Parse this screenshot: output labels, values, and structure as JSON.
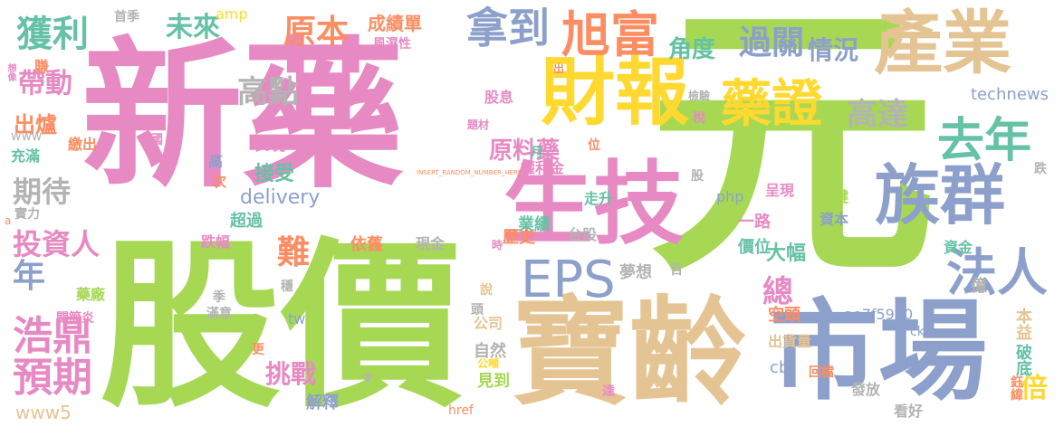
{
  "palette": {
    "pink": "#e78ac3",
    "green": "#a6d854",
    "tan": "#e5c494",
    "blue": "#8da0cb",
    "yellow": "#ffd92f",
    "orange": "#fc8d62",
    "teal": "#66c2a5",
    "gray": "#b3b3b3"
  },
  "words": [
    {
      "id": "w1",
      "text": "新藥",
      "color": "pink"
    },
    {
      "id": "w2",
      "text": "元",
      "color": "green"
    },
    {
      "id": "w3",
      "text": "股價",
      "color": "green"
    },
    {
      "id": "w4",
      "text": "寶齡",
      "color": "tan"
    },
    {
      "id": "w5",
      "text": "市場",
      "color": "blue"
    },
    {
      "id": "w6",
      "text": "生技",
      "color": "pink"
    },
    {
      "id": "w7",
      "text": "財報",
      "color": "yellow"
    },
    {
      "id": "w8",
      "text": "產業",
      "color": "tan"
    },
    {
      "id": "w9",
      "text": "族群",
      "color": "blue"
    },
    {
      "id": "w10",
      "text": "旭富",
      "color": "orange"
    },
    {
      "id": "w11",
      "text": "EPS",
      "color": "blue"
    },
    {
      "id": "w12",
      "text": "藥證",
      "color": "yellow"
    },
    {
      "id": "w13",
      "text": "法人",
      "color": "blue"
    },
    {
      "id": "w14",
      "text": "拿到",
      "color": "blue"
    },
    {
      "id": "w15",
      "text": "去年",
      "color": "teal"
    },
    {
      "id": "w16",
      "text": "浩鼎",
      "color": "pink"
    },
    {
      "id": "w17",
      "text": "預期",
      "color": "pink"
    },
    {
      "id": "w18",
      "text": "獲利",
      "color": "teal"
    },
    {
      "id": "w19",
      "text": "原本",
      "color": "orange"
    },
    {
      "id": "w20",
      "text": "未來",
      "color": "teal"
    },
    {
      "id": "w21",
      "text": "過關",
      "color": "blue"
    },
    {
      "id": "w22",
      "text": "高達",
      "color": "gray"
    },
    {
      "id": "w23",
      "text": "情況",
      "color": "blue"
    },
    {
      "id": "w24",
      "text": "角度",
      "color": "teal"
    },
    {
      "id": "w25",
      "text": "高點",
      "color": "gray"
    },
    {
      "id": "w26",
      "text": "帶動",
      "color": "pink"
    },
    {
      "id": "w27",
      "text": "期待",
      "color": "gray"
    },
    {
      "id": "w28",
      "text": "投資人",
      "color": "pink"
    },
    {
      "id": "w29",
      "text": "年",
      "color": "blue"
    },
    {
      "id": "w30",
      "text": "原料藥",
      "color": "pink"
    },
    {
      "id": "w31",
      "text": "難",
      "color": "orange"
    },
    {
      "id": "w32",
      "text": "總",
      "color": "pink"
    },
    {
      "id": "w33",
      "text": "挑戰",
      "color": "pink"
    },
    {
      "id": "w34",
      "text": "接受",
      "color": "teal"
    },
    {
      "id": "w35",
      "text": "大幅",
      "color": "teal"
    },
    {
      "id": "w36",
      "text": "成績單",
      "color": "orange"
    },
    {
      "id": "w37",
      "text": "出爐",
      "color": "orange"
    },
    {
      "id": "w38",
      "text": "www5",
      "color": "tan"
    },
    {
      "id": "w39",
      "text": "delivery",
      "color": "blue"
    },
    {
      "id": "w40",
      "text": "technews",
      "color": "blue"
    },
    {
      "id": "w41",
      "text": "ae7f5990",
      "color": "blue"
    },
    {
      "id": "w42",
      "text": "倍",
      "color": "yellow"
    },
    {
      "id": "w43",
      "text": "cb",
      "color": "blue"
    },
    {
      "id": "w44",
      "text": "amp",
      "color": "yellow"
    },
    {
      "id": "w45",
      "text": "股息",
      "color": "pink"
    },
    {
      "id": "w46",
      "text": "表現",
      "color": "pink"
    },
    {
      "id": "w47",
      "text": "業績",
      "color": "teal"
    },
    {
      "id": "w48",
      "text": "權利金",
      "color": "pink"
    },
    {
      "id": "w49",
      "text": "歷史",
      "color": "orange"
    },
    {
      "id": "w50",
      "text": "台股",
      "color": "gray"
    },
    {
      "id": "w51",
      "text": "一路",
      "color": "pink"
    },
    {
      "id": "w52",
      "text": "價位",
      "color": "teal"
    },
    {
      "id": "w53",
      "text": "呈現",
      "color": "pink"
    },
    {
      "id": "w54",
      "text": "資本",
      "color": "blue"
    },
    {
      "id": "w55",
      "text": "關鍵",
      "color": "green"
    },
    {
      "id": "w56",
      "text": "夢想",
      "color": "gray"
    },
    {
      "id": "w57",
      "text": "空頭",
      "color": "orange"
    },
    {
      "id": "w58",
      "text": "資金",
      "color": "teal"
    },
    {
      "id": "w59",
      "text": "億",
      "color": "gray"
    },
    {
      "id": "w60",
      "text": "本益",
      "color": "tan"
    },
    {
      "id": "w61",
      "text": "破底",
      "color": "teal"
    },
    {
      "id": "w62",
      "text": "出貨量",
      "color": "tan"
    },
    {
      "id": "w63",
      "text": "鈺緯",
      "color": "orange"
    },
    {
      "id": "w64",
      "text": "發放",
      "color": "gray"
    },
    {
      "id": "w65",
      "text": "看好",
      "color": "gray"
    },
    {
      "id": "w66",
      "text": "自然",
      "color": "gray"
    },
    {
      "id": "w67",
      "text": "公司",
      "color": "tan"
    },
    {
      "id": "w68",
      "text": "見到",
      "color": "green"
    },
    {
      "id": "w69",
      "text": "解釋",
      "color": "blue"
    },
    {
      "id": "w70",
      "text": "超過",
      "color": "teal"
    },
    {
      "id": "w71",
      "text": "跌幅",
      "color": "pink"
    },
    {
      "id": "w72",
      "text": "依舊",
      "color": "orange"
    },
    {
      "id": "w73",
      "text": "現金",
      "color": "gray"
    },
    {
      "id": "w74",
      "text": "走升",
      "color": "teal"
    },
    {
      "id": "w75",
      "text": "實力",
      "color": "gray"
    },
    {
      "id": "w76",
      "text": "充滿",
      "color": "teal"
    },
    {
      "id": "w77",
      "text": "繳出",
      "color": "orange"
    },
    {
      "id": "w78",
      "text": "www",
      "color": "gray"
    },
    {
      "id": "w79",
      "text": "中國",
      "color": "pink"
    },
    {
      "id": "w80",
      "text": "賺",
      "color": "orange"
    },
    {
      "id": "w81",
      "text": "首季",
      "color": "gray"
    },
    {
      "id": "w82",
      "text": "風濕性",
      "color": "pink"
    },
    {
      "id": "w83",
      "text": "關節炎",
      "color": "pink"
    },
    {
      "id": "w84",
      "text": "藥廠",
      "color": "green"
    },
    {
      "id": "w85",
      "text": "滿意",
      "color": "gray"
    },
    {
      "id": "w86",
      "text": "季",
      "color": "gray"
    },
    {
      "id": "w87",
      "text": "穩",
      "color": "gray"
    },
    {
      "id": "w88",
      "text": "tw",
      "color": "blue"
    },
    {
      "id": "w89",
      "text": "php",
      "color": "blue"
    },
    {
      "id": "w90",
      "text": "href",
      "color": "orange"
    },
    {
      "id": "w91",
      "text": "ck",
      "color": "blue"
    },
    {
      "id": "w92",
      "text": "回檔",
      "color": "orange"
    },
    {
      "id": "w93",
      "text": "跌",
      "color": "gray"
    },
    {
      "id": "w94",
      "text": "股",
      "color": "gray"
    },
    {
      "id": "w95",
      "text": "月",
      "color": "teal"
    },
    {
      "id": "w96",
      "text": "位",
      "color": "orange"
    },
    {
      "id": "w97",
      "text": "稅",
      "color": "pink"
    },
    {
      "id": "w98",
      "text": "題材",
      "color": "pink"
    },
    {
      "id": "w99",
      "text": "檢驗",
      "color": "gray"
    },
    {
      "id": "w100",
      "text": "出",
      "color": "orange"
    },
    {
      "id": "w101",
      "text": "高",
      "color": "blue"
    },
    {
      "id": "w102",
      "text": "次",
      "color": "orange"
    },
    {
      "id": "w103",
      "text": "時",
      "color": "pink"
    },
    {
      "id": "w104",
      "text": "說",
      "color": "tan"
    },
    {
      "id": "w105",
      "text": "頭",
      "color": "gray"
    },
    {
      "id": "w106",
      "text": "公噸",
      "color": "yellow"
    },
    {
      "id": "w107",
      "text": "達",
      "color": "pink"
    },
    {
      "id": "w108",
      "text": "更",
      "color": "orange"
    },
    {
      "id": "w109",
      "text": "令",
      "color": "gray"
    },
    {
      "id": "w110",
      "text": "百",
      "color": "gray"
    },
    {
      "id": "w111",
      "text": "想像",
      "color": "pink"
    },
    {
      "id": "w112",
      "text": "INSERT_RANDOM_NUMBER_HERE",
      "color": "orange"
    },
    {
      "id": "w113",
      "text": "a",
      "color": "orange"
    }
  ]
}
